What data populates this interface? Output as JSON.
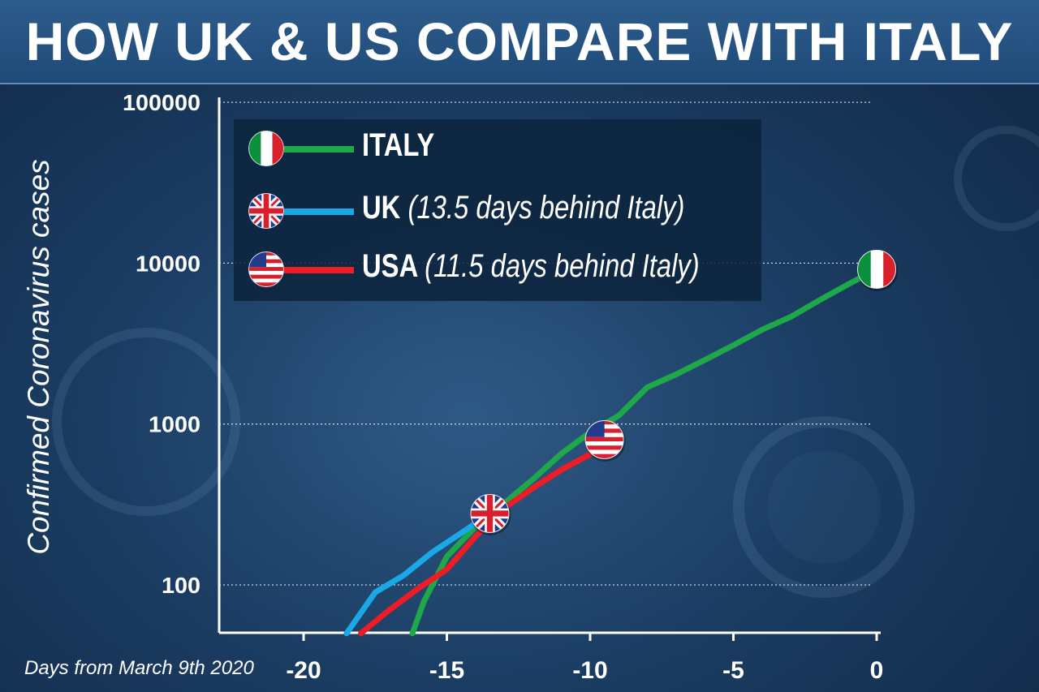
{
  "header": {
    "title": "HOW UK & US COMPARE WITH ITALY"
  },
  "legend": {
    "items": [
      {
        "flag": "italy-flag-icon",
        "name": "ITALY",
        "note": "",
        "color": "#1fa84a"
      },
      {
        "flag": "uk-flag-icon",
        "name": "UK",
        "note": "(13.5 days behind Italy)",
        "color": "#1aa9e6"
      },
      {
        "flag": "usa-flag-icon",
        "name": "USA",
        "note": "(11.5 days behind Italy)",
        "color": "#ee1c25"
      }
    ]
  },
  "chart_data": {
    "type": "line",
    "title": "HOW UK & US COMPARE WITH ITALY",
    "xlabel": "Days from March 9th 2020",
    "ylabel": "Confirmed Coronavirus cases",
    "x_ticks": [
      -20,
      -15,
      -10,
      -5,
      0
    ],
    "y_ticks": [
      100,
      1000,
      10000,
      100000
    ],
    "y_scale": "log",
    "xlim": [
      -23,
      0
    ],
    "ylim": [
      50,
      100000
    ],
    "grid": "horizontal dotted",
    "legend_position": "top-left",
    "series": [
      {
        "name": "ITALY",
        "color": "#1fa84a",
        "x": [
          -16.2,
          -15.8,
          -15,
          -14,
          -13,
          -12,
          -11,
          -10,
          -9,
          -8,
          -7,
          -6,
          -5,
          -4,
          -3,
          -2,
          -1,
          0
        ],
        "y": [
          50,
          79,
          150,
          229,
          322,
          453,
          655,
          888,
          1128,
          1694,
          2036,
          2502,
          3089,
          3858,
          4636,
          5883,
          7375,
          9172
        ]
      },
      {
        "name": "UK",
        "color": "#1aa9e6",
        "x": [
          -18.5,
          -17.5,
          -16.5,
          -15.5,
          -14.5,
          -13.5
        ],
        "y": [
          50,
          90,
          115,
          160,
          210,
          278
        ]
      },
      {
        "name": "USA",
        "color": "#ee1c25",
        "x": [
          -18,
          -17,
          -16,
          -15,
          -14,
          -13,
          -12,
          -11,
          -10,
          -9.5
        ],
        "y": [
          50,
          70,
          95,
          125,
          200,
          300,
          400,
          520,
          650,
          800
        ]
      }
    ],
    "markers": [
      {
        "series": "ITALY",
        "icon": "italy-flag-icon",
        "x": 0,
        "y": 9172
      },
      {
        "series": "USA",
        "icon": "usa-flag-icon",
        "x": -9.5,
        "y": 800
      },
      {
        "series": "UK",
        "icon": "uk-flag-icon",
        "x": -13.5,
        "y": 278
      }
    ]
  }
}
